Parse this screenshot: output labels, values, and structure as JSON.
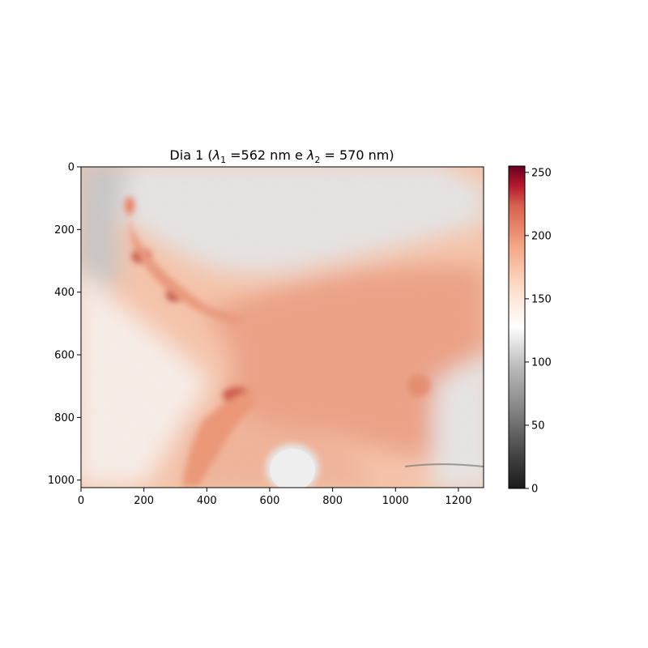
{
  "chart_data": {
    "type": "heatmap",
    "title": {
      "prefix": "Dia 1 (",
      "lambda1_symbol": "λ",
      "lambda1_sub": "1",
      "lambda1_rest": " =562 nm e ",
      "lambda2_symbol": "λ",
      "lambda2_sub": "2",
      "lambda2_rest": " = 570 nm)"
    },
    "xlabel": "",
    "ylabel": "",
    "image_size": {
      "width": 1280,
      "height": 1024
    },
    "xlim": [
      0,
      1280
    ],
    "ylim": [
      1024,
      0
    ],
    "x_ticks": [
      0,
      200,
      400,
      600,
      800,
      1000,
      1200
    ],
    "y_ticks": [
      0,
      200,
      400,
      600,
      800,
      1000
    ],
    "x_tick_labels": [
      "0",
      "200",
      "400",
      "600",
      "800",
      "1000",
      "1200"
    ],
    "y_tick_labels": [
      "0",
      "200",
      "400",
      "600",
      "800",
      "1000"
    ],
    "colorbar": {
      "colormap": "RdGy_r",
      "range": [
        0,
        255
      ],
      "ticks": [
        0,
        50,
        100,
        150,
        200,
        250
      ],
      "tick_labels": [
        "0",
        "50",
        "100",
        "150",
        "200",
        "250"
      ],
      "stops": [
        {
          "value": 0,
          "color": "#1a1a1a"
        },
        {
          "value": 32,
          "color": "#4d4d4d"
        },
        {
          "value": 64,
          "color": "#878787"
        },
        {
          "value": 96,
          "color": "#bababa"
        },
        {
          "value": 128,
          "color": "#ffffff"
        },
        {
          "value": 160,
          "color": "#fddbc7"
        },
        {
          "value": 192,
          "color": "#f4a582"
        },
        {
          "value": 224,
          "color": "#d6604d"
        },
        {
          "value": 240,
          "color": "#b2182b"
        },
        {
          "value": 255,
          "color": "#67001f"
        }
      ]
    },
    "grid": false,
    "regions": [
      {
        "name": "background",
        "value": 160
      },
      {
        "name": "upper-gray-band",
        "value": 118
      },
      {
        "name": "left-gray-corner",
        "value": 95
      },
      {
        "name": "central-tissue",
        "value": 182
      },
      {
        "name": "right-gray-region",
        "value": 110
      },
      {
        "name": "bright-circle",
        "value": 112
      },
      {
        "name": "dark-spot-1",
        "value": 215,
        "x": 190,
        "y": 285
      },
      {
        "name": "dark-spot-2",
        "value": 220,
        "x": 305,
        "y": 405
      },
      {
        "name": "dark-spot-3",
        "value": 205,
        "x": 500,
        "y": 725
      },
      {
        "name": "small-spot-top",
        "value": 185,
        "x": 155,
        "y": 125
      },
      {
        "name": "blob-right",
        "value": 195,
        "x": 1075,
        "y": 700
      }
    ]
  }
}
